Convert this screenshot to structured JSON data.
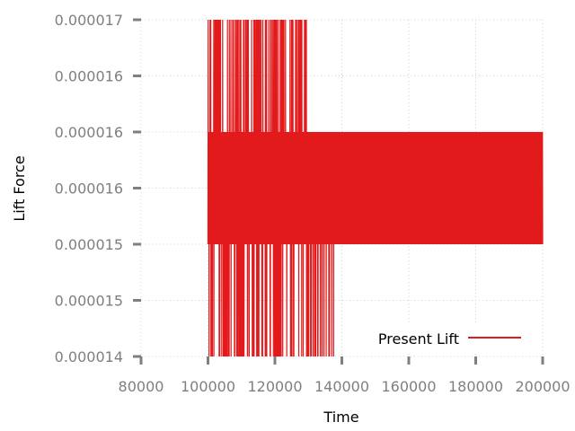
{
  "chart_data": {
    "type": "line",
    "title": "",
    "xlabel": "Time",
    "ylabel": "Lift Force",
    "x_ticks": [
      80000,
      100000,
      120000,
      140000,
      160000,
      180000,
      200000
    ],
    "x_tick_labels": [
      "80000",
      "100000",
      "120000",
      "140000",
      "160000",
      "180000",
      "200000"
    ],
    "y_tick_labels": [
      "0.000017",
      "0.000016",
      "0.000016",
      "0.000016",
      "0.000015",
      "0.000015",
      "0.000014"
    ],
    "xlim": [
      80000,
      200000
    ],
    "ylim": [
      1.4e-05,
      1.7e-05
    ],
    "grid": true,
    "legend_position": "bottom-right",
    "series": [
      {
        "name": "Present Lift",
        "color": "#e31a1c",
        "description_points": {
          "x_start": 100000,
          "x_end": 200000,
          "band_low": 1.5e-05,
          "band_high": 1.6e-05,
          "spike_high": 1.7e-05,
          "spike_high_until": 130000,
          "spike_low": 1.4e-05,
          "spike_low_until": 138000
        }
      }
    ]
  }
}
